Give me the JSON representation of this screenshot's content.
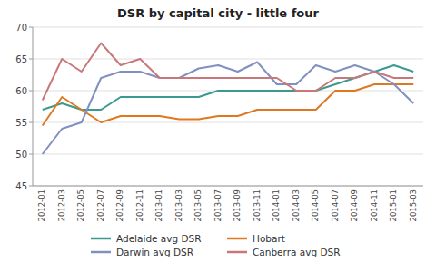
{
  "chart_data": {
    "type": "line",
    "title": "DSR by capital city - little four",
    "categories": [
      "2012-01",
      "2012-03",
      "2012-05",
      "2012-07",
      "2012-09",
      "2012-11",
      "2013-01",
      "2013-03",
      "2013-05",
      "2013-07",
      "2013-09",
      "2013-11",
      "2014-01",
      "2014-03",
      "2014-05",
      "2014-07",
      "2014-09",
      "2014-11",
      "2015-01",
      "2015-03"
    ],
    "series": [
      {
        "name": "Adelaide avg DSR",
        "color": "#3a9a8f",
        "values": [
          57.0,
          58.0,
          57.0,
          57.0,
          59.0,
          59.0,
          59.0,
          59.0,
          59.0,
          60.0,
          60.0,
          60.0,
          60.0,
          60.0,
          60.0,
          61.0,
          62.0,
          63.0,
          64.0,
          63.0
        ]
      },
      {
        "name": "Hobart",
        "color": "#e07820",
        "values": [
          54.5,
          59.0,
          57.0,
          55.0,
          56.0,
          56.0,
          56.0,
          55.5,
          55.5,
          56.0,
          56.0,
          57.0,
          57.0,
          57.0,
          57.0,
          60.0,
          60.0,
          61.0,
          61.0,
          61.0
        ]
      },
      {
        "name": "Darwin avg DSR",
        "color": "#8090c0",
        "values": [
          50.0,
          54.0,
          55.0,
          62.0,
          63.0,
          63.0,
          62.0,
          62.0,
          63.5,
          64.0,
          63.0,
          64.5,
          61.0,
          61.0,
          64.0,
          63.0,
          64.0,
          63.0,
          61.0,
          58.0
        ]
      },
      {
        "name": "Canberra avg DSR",
        "color": "#c87878",
        "values": [
          58.5,
          65.0,
          63.0,
          67.5,
          64.0,
          65.0,
          62.0,
          62.0,
          62.0,
          62.0,
          62.0,
          62.0,
          62.0,
          60.0,
          60.0,
          62.0,
          62.0,
          63.0,
          62.0,
          62.0
        ]
      }
    ],
    "ylim": [
      45,
      70
    ],
    "yticks": [
      45,
      50,
      55,
      60,
      65,
      70
    ],
    "grid": true,
    "legend": "bottom"
  }
}
